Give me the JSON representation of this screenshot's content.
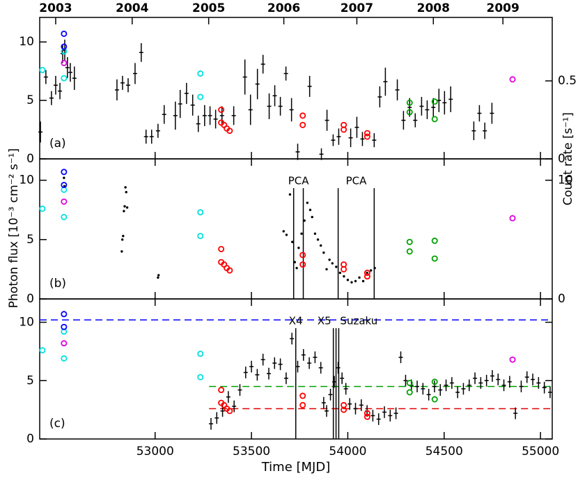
{
  "chart_data": [
    {
      "type": "scatter",
      "label": "(a)",
      "ylabel": "Photon flux [10⁻³ cm⁻² s⁻¹]",
      "y2label": "Count rate [s⁻¹]",
      "xlim": [
        52401,
        55061
      ],
      "xticks": [
        53000,
        53500,
        54000,
        54500,
        55000
      ],
      "xticklabels": false,
      "x2ticks": [
        {
          "value": 52484,
          "label": "2003"
        },
        {
          "value": 52881,
          "label": "2004"
        },
        {
          "value": 53278,
          "label": "2005"
        },
        {
          "value": 53668,
          "label": "2006"
        },
        {
          "value": 54047,
          "label": "2007"
        },
        {
          "value": 54444,
          "label": "2008"
        },
        {
          "value": 54805,
          "label": "2009"
        }
      ],
      "ylim": [
        0,
        12.1
      ],
      "yticks": [
        0,
        5,
        10
      ],
      "y2lim": [
        0,
        0.907
      ],
      "y2ticks": [
        0,
        0.5
      ],
      "series": [
        {
          "marker": "cross",
          "color": "#000000",
          "x": [
            52405,
            52433,
            52462,
            52484,
            52506,
            52520,
            52531,
            52545,
            52560,
            52581,
            52802,
            52831,
            52860,
            52896,
            52928,
            52953,
            52982,
            53015,
            53047,
            53105,
            53130,
            53163,
            53195,
            53224,
            53257,
            53285,
            53314,
            53347,
            53408,
            53466,
            53495,
            53531,
            53560,
            53592,
            53621,
            53650,
            53679,
            53708,
            53740,
            53802,
            53863,
            53892,
            53924,
            53953,
            54015,
            54047,
            54076,
            54137,
            54166,
            54195,
            54257,
            54289,
            54321,
            54350,
            54383,
            54412,
            54444,
            54473,
            54502,
            54534,
            54654,
            54683,
            54711,
            54748
          ],
          "values": [
            2.3,
            7,
            5.2,
            6.3,
            5.8,
            9,
            9.3,
            7.8,
            7.4,
            6.9,
            5.9,
            6.5,
            6.3,
            7.3,
            9.1,
            1.9,
            1.9,
            2.4,
            3.8,
            3.7,
            4.7,
            5.6,
            4.6,
            3,
            3.7,
            3.7,
            3.4,
            3.7,
            3.7,
            7,
            4.2,
            6.4,
            8.1,
            4.5,
            5.4,
            4.5,
            7.3,
            4.2,
            0.6,
            6.2,
            0.4,
            3.3,
            1.6,
            1.9,
            1.8,
            2.7,
            1.7,
            1.6,
            5.3,
            6.6,
            5.9,
            3.3,
            4.4,
            3.3,
            4.5,
            4.2,
            4.4,
            5,
            4.8,
            5.1,
            2.4,
            3.9,
            2.4,
            3.9
          ],
          "errors": [
            0.9,
            0.6,
            0.6,
            0.8,
            0.7,
            0.8,
            0.9,
            0.9,
            0.8,
            1.0,
            0.9,
            0.6,
            0.6,
            0.9,
            0.8,
            0.6,
            0.6,
            0.6,
            0.8,
            1.2,
            1.2,
            0.9,
            0.9,
            0.7,
            0.9,
            0.8,
            0.8,
            0.8,
            0.8,
            1.5,
            1.3,
            1.3,
            0.8,
            1.1,
            0.9,
            0.8,
            0.6,
            1.0,
            0.7,
            0.9,
            0.5,
            0.9,
            0.5,
            0.7,
            0.8,
            0.9,
            0.6,
            0.6,
            0.9,
            1.2,
            0.9,
            0.8,
            0.8,
            0.6,
            0.8,
            0.8,
            0.8,
            1.0,
            1.0,
            1.1,
            0.8,
            0.7,
            0.7,
            0.9
          ]
        },
        {
          "marker": "circle",
          "color": "#00e0e0",
          "x": [
            52415,
            52527,
            52527,
            53235,
            53235
          ],
          "values": [
            7.6,
            9.2,
            6.9,
            7.3,
            5.3
          ]
        },
        {
          "marker": "circle",
          "color": "#0000ff",
          "x": [
            52527,
            52527
          ],
          "values": [
            10.7,
            9.6
          ]
        },
        {
          "marker": "circle",
          "color": "#e000e0",
          "x": [
            52527,
            54855
          ],
          "values": [
            8.2,
            6.8
          ]
        },
        {
          "marker": "circle",
          "color": "#ff0000",
          "x": [
            53343,
            53343,
            53358,
            53372,
            53387,
            53766,
            53766,
            53979,
            53979,
            54101,
            54101
          ],
          "values": [
            4.2,
            3.1,
            2.9,
            2.6,
            2.4,
            3.7,
            2.9,
            2.9,
            2.5,
            2.2,
            1.9
          ]
        },
        {
          "marker": "circle",
          "color": "#00a000",
          "x": [
            54321,
            54321,
            54451,
            54451
          ],
          "values": [
            4.8,
            4.0,
            4.9,
            3.4
          ]
        }
      ]
    },
    {
      "type": "scatter",
      "label": "(b)",
      "xlim": [
        52401,
        55061
      ],
      "xticks": [
        53000,
        53500,
        54000,
        54500,
        55000
      ],
      "xticklabels": false,
      "ylim": [
        0,
        11.8
      ],
      "yticks": [
        0,
        5,
        10
      ],
      "y2lim": [
        0,
        11.8
      ],
      "y2ticks": [
        0,
        10
      ],
      "vlines": [
        {
          "label": "PCA",
          "x": [
            53719,
            53769
          ],
          "anchor": "middle"
        },
        {
          "label": "PCA",
          "x": [
            53950,
            54137
          ],
          "anchor": "middle"
        }
      ],
      "series": [
        {
          "marker": "dot",
          "color": "#000000",
          "x": [
            52527,
            52529,
            52827,
            52830,
            52834,
            52838,
            52842,
            52846,
            52850,
            52855,
            53015,
            53018,
            53667,
            53682,
            53700,
            53712,
            53725,
            53735,
            53745,
            53760,
            53775,
            53790,
            53805,
            53815,
            53830,
            53845,
            53860,
            53875,
            53890,
            53905,
            53920,
            53940,
            53960,
            53980,
            54000,
            54020,
            54040,
            54060,
            54080,
            54100,
            54120,
            54140
          ],
          "values": [
            10.2,
            9.5,
            4.0,
            5.0,
            5.3,
            7.4,
            7.8,
            9.4,
            9.0,
            7.7,
            1.8,
            2.0,
            5.7,
            5.4,
            8.8,
            4.8,
            3.1,
            2.6,
            4.3,
            5.5,
            6.6,
            8.1,
            7.5,
            6.9,
            5.5,
            5.0,
            4.5,
            3.9,
            2.5,
            3.3,
            3.0,
            2.7,
            2.2,
            1.9,
            1.6,
            1.4,
            1.5,
            1.8,
            1.5,
            2.2,
            2.4,
            2.6
          ]
        },
        {
          "marker": "circle",
          "color": "#00e0e0",
          "x": [
            52415,
            52527,
            52527,
            53235,
            53235
          ],
          "values": [
            7.6,
            9.2,
            6.9,
            7.3,
            5.3
          ]
        },
        {
          "marker": "circle",
          "color": "#0000ff",
          "x": [
            52527,
            52527
          ],
          "values": [
            10.7,
            9.6
          ]
        },
        {
          "marker": "circle",
          "color": "#e000e0",
          "x": [
            52527,
            54855
          ],
          "values": [
            8.2,
            6.8
          ]
        },
        {
          "marker": "circle",
          "color": "#ff0000",
          "x": [
            53343,
            53343,
            53358,
            53372,
            53387,
            53766,
            53766,
            53979,
            53979,
            54101,
            54101
          ],
          "values": [
            4.2,
            3.1,
            2.9,
            2.6,
            2.4,
            3.7,
            2.9,
            2.9,
            2.5,
            2.2,
            1.9
          ]
        },
        {
          "marker": "circle",
          "color": "#00a000",
          "x": [
            54321,
            54321,
            54451,
            54451
          ],
          "values": [
            4.8,
            4.0,
            4.9,
            3.4
          ]
        }
      ]
    },
    {
      "type": "scatter",
      "label": "(c)",
      "xlabel": "Time [MJD]",
      "xlim": [
        52401,
        55061
      ],
      "xticks": [
        53000,
        53500,
        54000,
        54500,
        55000
      ],
      "xticklabels": true,
      "ylim": [
        0,
        12
      ],
      "yticks": [
        0,
        5,
        10
      ],
      "hlines": [
        {
          "y": 10.2,
          "color": "#0000ff",
          "from": 52401
        },
        {
          "y": 4.5,
          "color": "#00a000",
          "from": 53280
        },
        {
          "y": 2.6,
          "color": "#e00000",
          "from": 53280
        }
      ],
      "vlines": [
        {
          "label": "X4",
          "x": [
            53730
          ],
          "anchor": "middle"
        },
        {
          "label": "X5",
          "x": [
            53925,
            53939
          ],
          "anchor": "end"
        },
        {
          "label": "Suzaku",
          "x": [
            53953
          ],
          "anchor": "start"
        }
      ],
      "series": [
        {
          "marker": "cross",
          "color": "#000000",
          "error": 0.5,
          "x": [
            53290,
            53320,
            53350,
            53380,
            53410,
            53440,
            53470,
            53500,
            53530,
            53560,
            53590,
            53620,
            53650,
            53680,
            53710,
            53740,
            53770,
            53800,
            53830,
            53860,
            53875,
            53890,
            53910,
            53930,
            53950,
            53970,
            53990,
            54010,
            54040,
            54070,
            54100,
            54130,
            54160,
            54190,
            54220,
            54250,
            54275,
            54300,
            54330,
            54360,
            54390,
            54420,
            54450,
            54480,
            54510,
            54540,
            54570,
            54600,
            54630,
            54660,
            54690,
            54720,
            54750,
            54780,
            54810,
            54840,
            54870,
            54900,
            54930,
            54960,
            54990,
            55020,
            55050
          ],
          "values": [
            1.3,
            1.8,
            2.4,
            3.6,
            2.8,
            4.2,
            5.7,
            6.2,
            5.5,
            6.8,
            5.6,
            6.5,
            6.4,
            5.2,
            8.6,
            6.2,
            7.2,
            6.5,
            7.0,
            6.1,
            3.1,
            2.4,
            3.8,
            4.9,
            6.1,
            5.2,
            4.3,
            3.0,
            2.6,
            2.9,
            2.4,
            2.0,
            1.7,
            2.3,
            2.0,
            2.2,
            7.0,
            5.0,
            4.6,
            4.5,
            4.3,
            3.8,
            4.5,
            4.2,
            4.6,
            4.8,
            4.0,
            4.3,
            4.6,
            5.2,
            4.8,
            5.0,
            5.4,
            5.1,
            4.6,
            4.9,
            2.2,
            4.5,
            5.3,
            5.1,
            4.8,
            4.4,
            4.0
          ]
        },
        {
          "marker": "circle",
          "color": "#00e0e0",
          "x": [
            52415,
            52527,
            52527,
            53235,
            53235
          ],
          "values": [
            7.6,
            9.2,
            6.9,
            7.3,
            5.3
          ]
        },
        {
          "marker": "circle",
          "color": "#0000ff",
          "x": [
            52527,
            52527
          ],
          "values": [
            10.7,
            9.6
          ]
        },
        {
          "marker": "circle",
          "color": "#e000e0",
          "x": [
            52527,
            54855
          ],
          "values": [
            8.2,
            6.8
          ]
        },
        {
          "marker": "circle",
          "color": "#ff0000",
          "x": [
            53343,
            53343,
            53358,
            53372,
            53387,
            53766,
            53766,
            53979,
            53979,
            54101,
            54101
          ],
          "values": [
            4.2,
            3.1,
            2.9,
            2.6,
            2.4,
            3.7,
            2.9,
            2.9,
            2.5,
            2.2,
            1.9
          ]
        },
        {
          "marker": "circle",
          "color": "#00a000",
          "x": [
            54321,
            54321,
            54451,
            54451
          ],
          "values": [
            4.8,
            4.0,
            4.9,
            3.4
          ]
        }
      ]
    }
  ]
}
